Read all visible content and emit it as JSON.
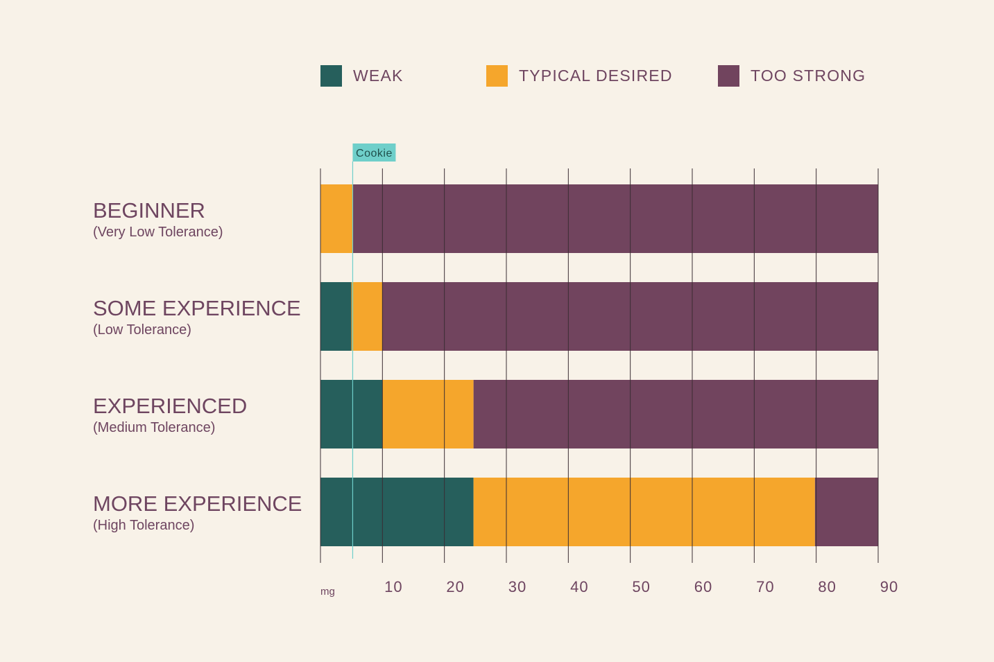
{
  "chart_data": {
    "type": "bar",
    "orientation": "horizontal",
    "stacked": true,
    "categories": [
      {
        "title": "BEGINNER",
        "subtitle": "(Very Low Tolerance)"
      },
      {
        "title": "SOME EXPERIENCE",
        "subtitle": "(Low Tolerance)"
      },
      {
        "title": "EXPERIENCED",
        "subtitle": "(Medium Tolerance)"
      },
      {
        "title": "MORE EXPERIENCE",
        "subtitle": "(High Tolerance)"
      }
    ],
    "series": [
      {
        "name": "WEAK",
        "color": "#265f5c",
        "values": [
          0,
          5,
          10,
          24.7
        ]
      },
      {
        "name": "TYPICAL DESIRED",
        "color": "#f5a62c",
        "values": [
          5.2,
          5,
          14.7,
          55.1
        ]
      },
      {
        "name": "TOO STRONG",
        "color": "#71445e",
        "values": [
          84.8,
          80,
          65.3,
          10.2
        ]
      }
    ],
    "x_unit": "mg",
    "xlim": [
      0,
      90
    ],
    "x_ticks": [
      10,
      20,
      30,
      40,
      50,
      60,
      70,
      80,
      90
    ],
    "grid": true,
    "legend_position": "top",
    "marker": {
      "label": "Cookie",
      "value": 5.2,
      "color": "#6fcfca"
    }
  }
}
